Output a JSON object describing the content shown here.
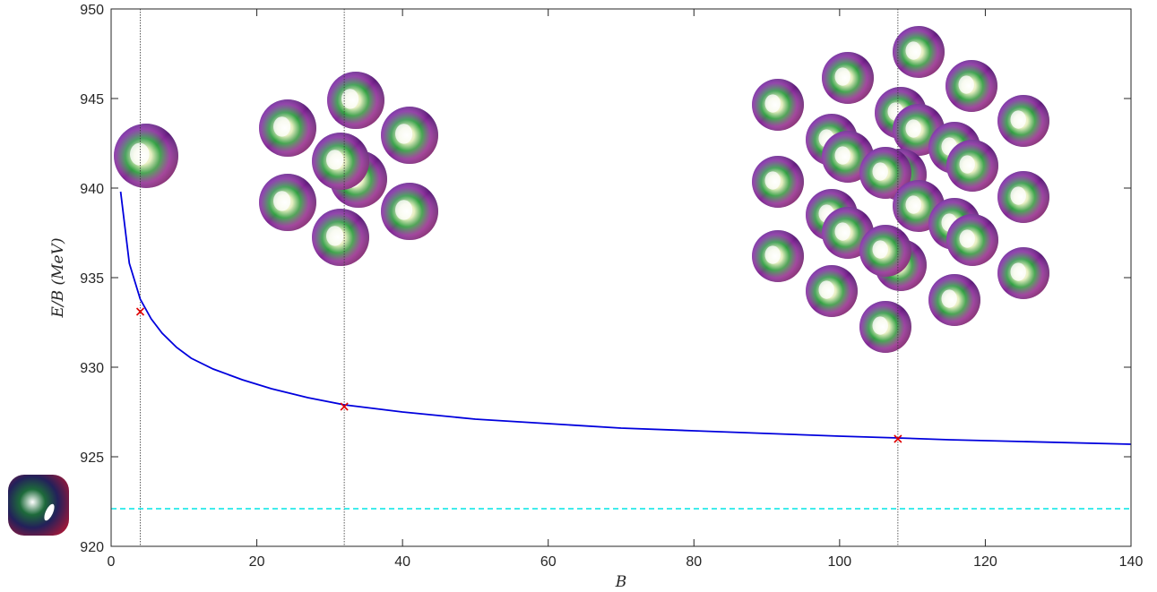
{
  "chart_data": {
    "type": "line",
    "xlabel": "B",
    "ylabel": "E/B (MeV)",
    "xlim": [
      0,
      140
    ],
    "ylim": [
      920,
      950
    ],
    "xticks": [
      0,
      20,
      40,
      60,
      80,
      100,
      120,
      140
    ],
    "yticks": [
      920,
      925,
      930,
      935,
      940,
      945,
      950
    ],
    "grid": false,
    "series": [
      {
        "style": "solid",
        "color": "#0000dd",
        "x": [
          1.3,
          2.5,
          4,
          5.5,
          7,
          9,
          11,
          14,
          18,
          22,
          27,
          32,
          40,
          50,
          60,
          70,
          80,
          90,
          100,
          108,
          115,
          125,
          140
        ],
        "y": [
          939.8,
          935.8,
          933.8,
          932.7,
          931.9,
          931.1,
          930.5,
          929.9,
          929.3,
          928.8,
          928.3,
          927.9,
          927.5,
          927.1,
          926.85,
          926.6,
          926.45,
          926.3,
          926.15,
          926.05,
          925.95,
          925.85,
          925.7
        ]
      },
      {
        "style": "dashed",
        "color": "#00e5e5",
        "x": [
          0,
          140
        ],
        "y": [
          922.1,
          922.1
        ]
      }
    ],
    "markers": {
      "color": "#e00000",
      "points": [
        {
          "x": 4,
          "y": 933.1
        },
        {
          "x": 32,
          "y": 927.8
        },
        {
          "x": 108,
          "y": 926.0
        }
      ]
    },
    "vlines": [
      4,
      32,
      108
    ],
    "images": {
      "sphere_colors": [
        "#6a2fc4",
        "#1f9a3a",
        "#ffffff",
        "#c0185a",
        "#4a8a20"
      ],
      "cluster_b4": "single skyrmion",
      "cluster_b32": "seven skyrmions",
      "cluster_b108": "hexagonal lattice of skyrmions",
      "crystal": "cubic crystal cell"
    }
  }
}
